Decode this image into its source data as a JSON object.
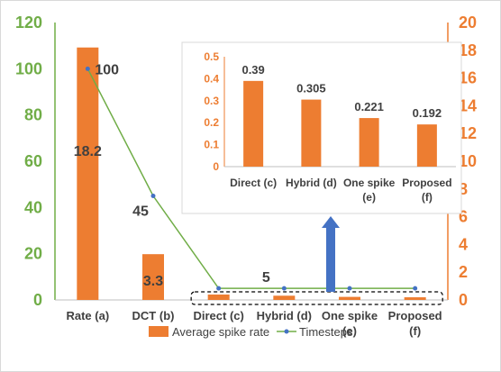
{
  "chart_data": [
    {
      "type": "bar+line",
      "title": "",
      "categories": [
        [
          "Rate (a)"
        ],
        [
          "DCT (b)"
        ],
        [
          "Direct (c)"
        ],
        [
          "Hybrid (d)"
        ],
        [
          "One spike",
          "(e)"
        ],
        [
          "Proposed",
          "(f)"
        ]
      ],
      "series": [
        {
          "name": "Average spike rate",
          "type": "bar",
          "axis": "right",
          "values": [
            18.2,
            3.3,
            0.39,
            0.305,
            0.221,
            0.192
          ],
          "data_labels": [
            "18.2",
            "3.3",
            null,
            null,
            null,
            null
          ]
        },
        {
          "name": "Timesteps",
          "type": "line",
          "axis": "left",
          "values": [
            100,
            45,
            5,
            5,
            5,
            5
          ],
          "data_labels": [
            "100",
            "45",
            null,
            "5",
            null,
            null
          ]
        }
      ],
      "y_left": {
        "min": 0,
        "max": 120,
        "step": 20,
        "ticks": [
          "0",
          "20",
          "40",
          "60",
          "80",
          "100",
          "120"
        ]
      },
      "y_right": {
        "min": 0,
        "max": 20,
        "step": 2,
        "ticks": [
          "0",
          "2",
          "4",
          "6",
          "8",
          "10",
          "12",
          "14",
          "16",
          "18",
          "20"
        ]
      },
      "grid": false,
      "legend": "bottom",
      "colors": {
        "bar": "#ed7d31",
        "line": "#70ad47",
        "marker": "#4472c4",
        "left_axis": "#70ad47",
        "right_axis": "#ed7d31",
        "arrow": "#4472c4"
      }
    },
    {
      "type": "bar",
      "title": "",
      "categories": [
        [
          "Direct (c)"
        ],
        [
          "Hybrid (d)"
        ],
        [
          "One spike",
          "(e)"
        ],
        [
          "Proposed",
          "(f)"
        ]
      ],
      "values": [
        0.39,
        0.305,
        0.221,
        0.192
      ],
      "data_labels": [
        "0.39",
        "0.305",
        "0.221",
        "0.192"
      ],
      "ylim": [
        0,
        0.5
      ],
      "y_ticks": [
        "0",
        "0.1",
        "0.2",
        "0.3",
        "0.4",
        "0.5"
      ],
      "grid": false
    }
  ]
}
